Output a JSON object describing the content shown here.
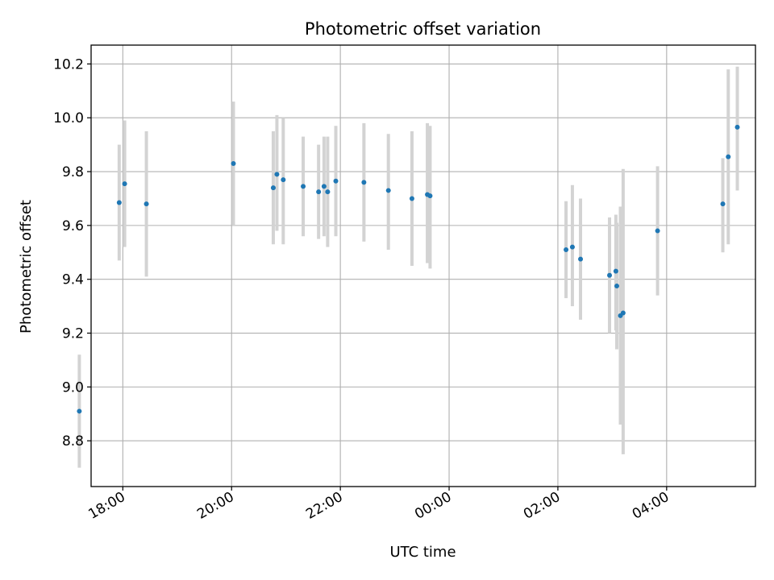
{
  "chart_data": {
    "type": "scatter",
    "title": "Photometric offset variation",
    "xlabel": "UTC time",
    "ylabel": "Photometric offset",
    "xlim": [
      "17:25",
      "05:38 +1d"
    ],
    "ylim": [
      8.63,
      10.27
    ],
    "grid": true,
    "x_ticks": [
      {
        "label": "18:00",
        "time": "18:00"
      },
      {
        "label": "20:00",
        "time": "20:00"
      },
      {
        "label": "22:00",
        "time": "22:00"
      },
      {
        "label": "00:00",
        "time": "00:00 +1d"
      },
      {
        "label": "02:00",
        "time": "02:00 +1d"
      },
      {
        "label": "04:00",
        "time": "04:00 +1d"
      }
    ],
    "y_ticks": [
      "8.8",
      "9.0",
      "9.2",
      "9.4",
      "9.6",
      "9.8",
      "10.0",
      "10.2"
    ],
    "colors": {
      "points": "#1f77b4",
      "errorbars": "#d3d3d3",
      "grid": "#b0b0b0"
    },
    "points": [
      {
        "x": "17:12",
        "y": 8.91,
        "ylow": 8.7,
        "yhigh": 9.12
      },
      {
        "x": "17:56",
        "y": 9.685,
        "ylow": 9.47,
        "yhigh": 9.9
      },
      {
        "x": "18:02",
        "y": 9.755,
        "ylow": 9.52,
        "yhigh": 9.99
      },
      {
        "x": "18:26",
        "y": 9.68,
        "ylow": 9.41,
        "yhigh": 9.95
      },
      {
        "x": "20:02",
        "y": 9.83,
        "ylow": 9.6,
        "yhigh": 10.06
      },
      {
        "x": "20:46",
        "y": 9.74,
        "ylow": 9.53,
        "yhigh": 9.95
      },
      {
        "x": "20:50",
        "y": 9.79,
        "ylow": 9.58,
        "yhigh": 10.01
      },
      {
        "x": "20:57",
        "y": 9.77,
        "ylow": 9.53,
        "yhigh": 10.0
      },
      {
        "x": "21:19",
        "y": 9.745,
        "ylow": 9.56,
        "yhigh": 9.93
      },
      {
        "x": "21:36",
        "y": 9.725,
        "ylow": 9.55,
        "yhigh": 9.9
      },
      {
        "x": "21:42",
        "y": 9.745,
        "ylow": 9.56,
        "yhigh": 9.93
      },
      {
        "x": "21:46",
        "y": 9.725,
        "ylow": 9.52,
        "yhigh": 9.93
      },
      {
        "x": "21:55",
        "y": 9.765,
        "ylow": 9.56,
        "yhigh": 9.97
      },
      {
        "x": "22:26",
        "y": 9.76,
        "ylow": 9.54,
        "yhigh": 9.98
      },
      {
        "x": "22:53",
        "y": 9.73,
        "ylow": 9.51,
        "yhigh": 9.94
      },
      {
        "x": "23:19",
        "y": 9.7,
        "ylow": 9.45,
        "yhigh": 9.95
      },
      {
        "x": "23:36",
        "y": 9.715,
        "ylow": 9.46,
        "yhigh": 9.98
      },
      {
        "x": "23:39",
        "y": 9.71,
        "ylow": 9.44,
        "yhigh": 9.97
      },
      {
        "x": "02:09 +1d",
        "y": 9.51,
        "ylow": 9.33,
        "yhigh": 9.69
      },
      {
        "x": "02:16 +1d",
        "y": 9.52,
        "ylow": 9.3,
        "yhigh": 9.75
      },
      {
        "x": "02:25 +1d",
        "y": 9.475,
        "ylow": 9.25,
        "yhigh": 9.7
      },
      {
        "x": "02:57 +1d",
        "y": 9.415,
        "ylow": 9.2,
        "yhigh": 9.63
      },
      {
        "x": "03:04 +1d",
        "y": 9.43,
        "ylow": 9.21,
        "yhigh": 9.64
      },
      {
        "x": "03:05 +1d",
        "y": 9.375,
        "ylow": 9.14,
        "yhigh": 9.61
      },
      {
        "x": "03:09 +1d",
        "y": 9.265,
        "ylow": 8.86,
        "yhigh": 9.67
      },
      {
        "x": "03:12 +1d",
        "y": 9.275,
        "ylow": 8.75,
        "yhigh": 9.81
      },
      {
        "x": "03:50 +1d",
        "y": 9.58,
        "ylow": 9.34,
        "yhigh": 9.82
      },
      {
        "x": "05:02 +1d",
        "y": 9.68,
        "ylow": 9.5,
        "yhigh": 9.85
      },
      {
        "x": "05:08 +1d",
        "y": 9.855,
        "ylow": 9.53,
        "yhigh": 10.18
      },
      {
        "x": "05:18 +1d",
        "y": 9.965,
        "ylow": 9.73,
        "yhigh": 10.19
      }
    ]
  }
}
